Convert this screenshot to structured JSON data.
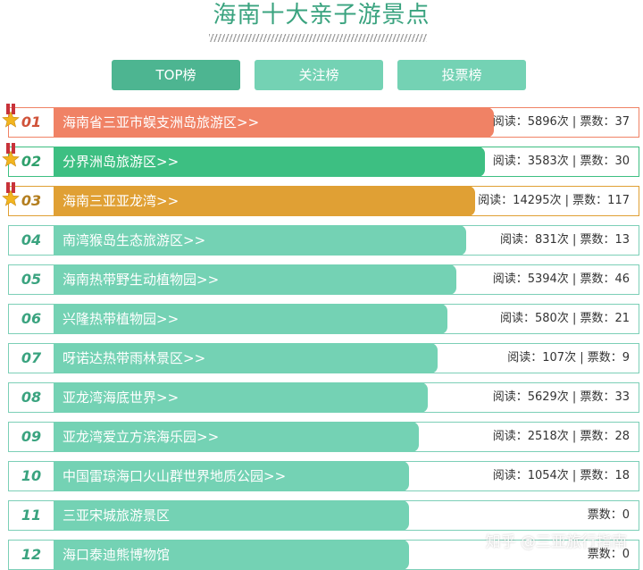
{
  "page": {
    "title": "海南十大亲子游景点",
    "watermark": "知乎 @三亚旅行指南"
  },
  "tabs": [
    {
      "label": "TOP榜",
      "active": true
    },
    {
      "label": "关注榜",
      "active": false
    },
    {
      "label": "投票榜",
      "active": false
    }
  ],
  "colors": {
    "accent": "#3aa37f",
    "rank1": "#f08265",
    "rank2": "#3dbf82",
    "rank3": "#e0a034",
    "default_bar": "#74d2b4",
    "row_border": "#7ccfb7",
    "rank1_text": "#d0533a",
    "rank2_text": "#2fa06c",
    "rank3_text": "#b37e1f",
    "rank_text": "#3aa37f"
  },
  "rankings": [
    {
      "rank": "01",
      "name": "海南省三亚市蜈支洲岛旅游区>>",
      "stats": "阅读：5896次 | 票数：37",
      "bar_fraction": 0.7,
      "medal": true
    },
    {
      "rank": "02",
      "name": "分界洲岛旅游区>>",
      "stats": "阅读：3583次 | 票数：30",
      "bar_fraction": 0.685,
      "medal": true
    },
    {
      "rank": "03",
      "name": "海南三亚亚龙湾>>",
      "stats": "阅读：14295次 | 票数：117",
      "bar_fraction": 0.67,
      "medal": true
    },
    {
      "rank": "04",
      "name": "南湾猴岛生态旅游区>>",
      "stats": "阅读：831次 | 票数：13",
      "bar_fraction": 0.655,
      "medal": false
    },
    {
      "rank": "05",
      "name": "海南热带野生动植物园>>",
      "stats": "阅读：5394次 | 票数：46",
      "bar_fraction": 0.64,
      "medal": false
    },
    {
      "rank": "06",
      "name": "兴隆热带植物园>>",
      "stats": "阅读：580次 | 票数：21",
      "bar_fraction": 0.625,
      "medal": false
    },
    {
      "rank": "07",
      "name": "呀诺达热带雨林景区>>",
      "stats": "阅读：107次 | 票数：9",
      "bar_fraction": 0.61,
      "medal": false
    },
    {
      "rank": "08",
      "name": "亚龙湾海底世界>>",
      "stats": "阅读：5629次 | 票数：33",
      "bar_fraction": 0.595,
      "medal": false
    },
    {
      "rank": "09",
      "name": "亚龙湾爱立方滨海乐园>>",
      "stats": "阅读：2518次 | 票数：28",
      "bar_fraction": 0.58,
      "medal": false
    },
    {
      "rank": "10",
      "name": "中国雷琼海口火山群世界地质公园>>",
      "stats": "阅读：1054次 | 票数：18",
      "bar_fraction": 0.565,
      "medal": false
    },
    {
      "rank": "11",
      "name": "三亚宋城旅游景区",
      "stats": "票数：0",
      "bar_fraction": 0.565,
      "medal": false
    },
    {
      "rank": "12",
      "name": "海口泰迪熊博物馆",
      "stats": "票数：0",
      "bar_fraction": 0.565,
      "medal": false
    }
  ]
}
